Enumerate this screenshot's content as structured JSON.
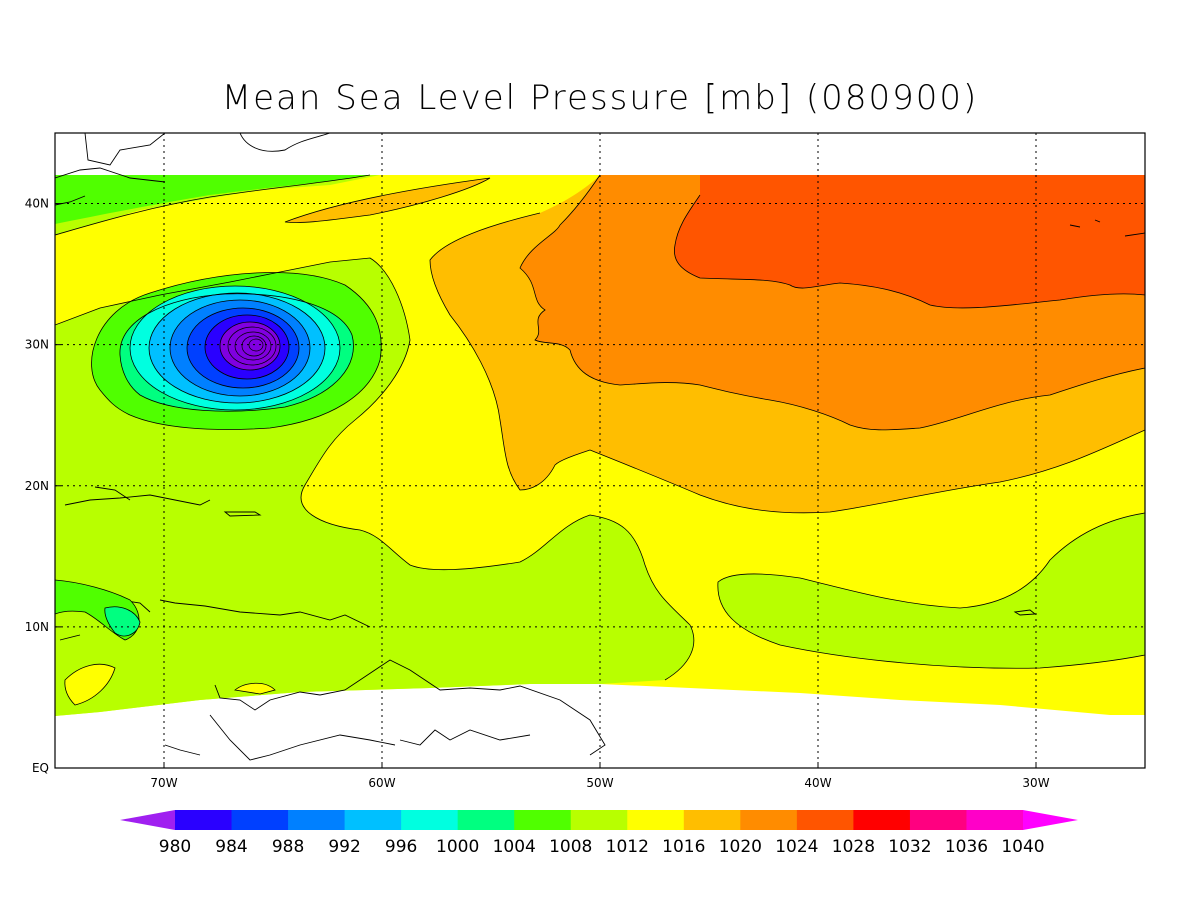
{
  "title": "Mean Sea Level Pressure [mb] (080900)",
  "map": {
    "lon_range": [
      -75,
      -25
    ],
    "lat_range": [
      0,
      45
    ],
    "data_lat_range": [
      6,
      42
    ],
    "lon_ticks": [
      {
        "value": -70,
        "label": "70W"
      },
      {
        "value": -60,
        "label": "60W"
      },
      {
        "value": -50,
        "label": "50W"
      },
      {
        "value": -40,
        "label": "40W"
      },
      {
        "value": -30,
        "label": "30W"
      }
    ],
    "lat_ticks": [
      {
        "value": 0,
        "label": "EQ"
      },
      {
        "value": 10,
        "label": "10N"
      },
      {
        "value": 20,
        "label": "20N"
      },
      {
        "value": 30,
        "label": "30N"
      },
      {
        "value": 40,
        "label": "40N"
      }
    ],
    "grid": "dotted"
  },
  "colorbar": {
    "levels": [
      "980",
      "984",
      "988",
      "992",
      "996",
      "1000",
      "1004",
      "1008",
      "1012",
      "1016",
      "1020",
      "1024",
      "1028",
      "1032",
      "1036",
      "1040"
    ],
    "colors": [
      "#a020f0",
      "#2a00ff",
      "#0040ff",
      "#0080ff",
      "#00c0ff",
      "#00ffe0",
      "#00ff80",
      "#50ff00",
      "#b8ff00",
      "#ffff00",
      "#ffbe00",
      "#ff8c00",
      "#ff5500",
      "#ff0000",
      "#ff0080",
      "#ff00c8",
      "#ff00ff"
    ]
  },
  "colors": {
    "c1004": "#00ff80",
    "c1008": "#50ff00",
    "c1012": "#b8ff00",
    "c1016": "#ffff00",
    "c1020": "#ffbe00",
    "c1024": "#ff8c00",
    "c1028": "#ff5500"
  }
}
